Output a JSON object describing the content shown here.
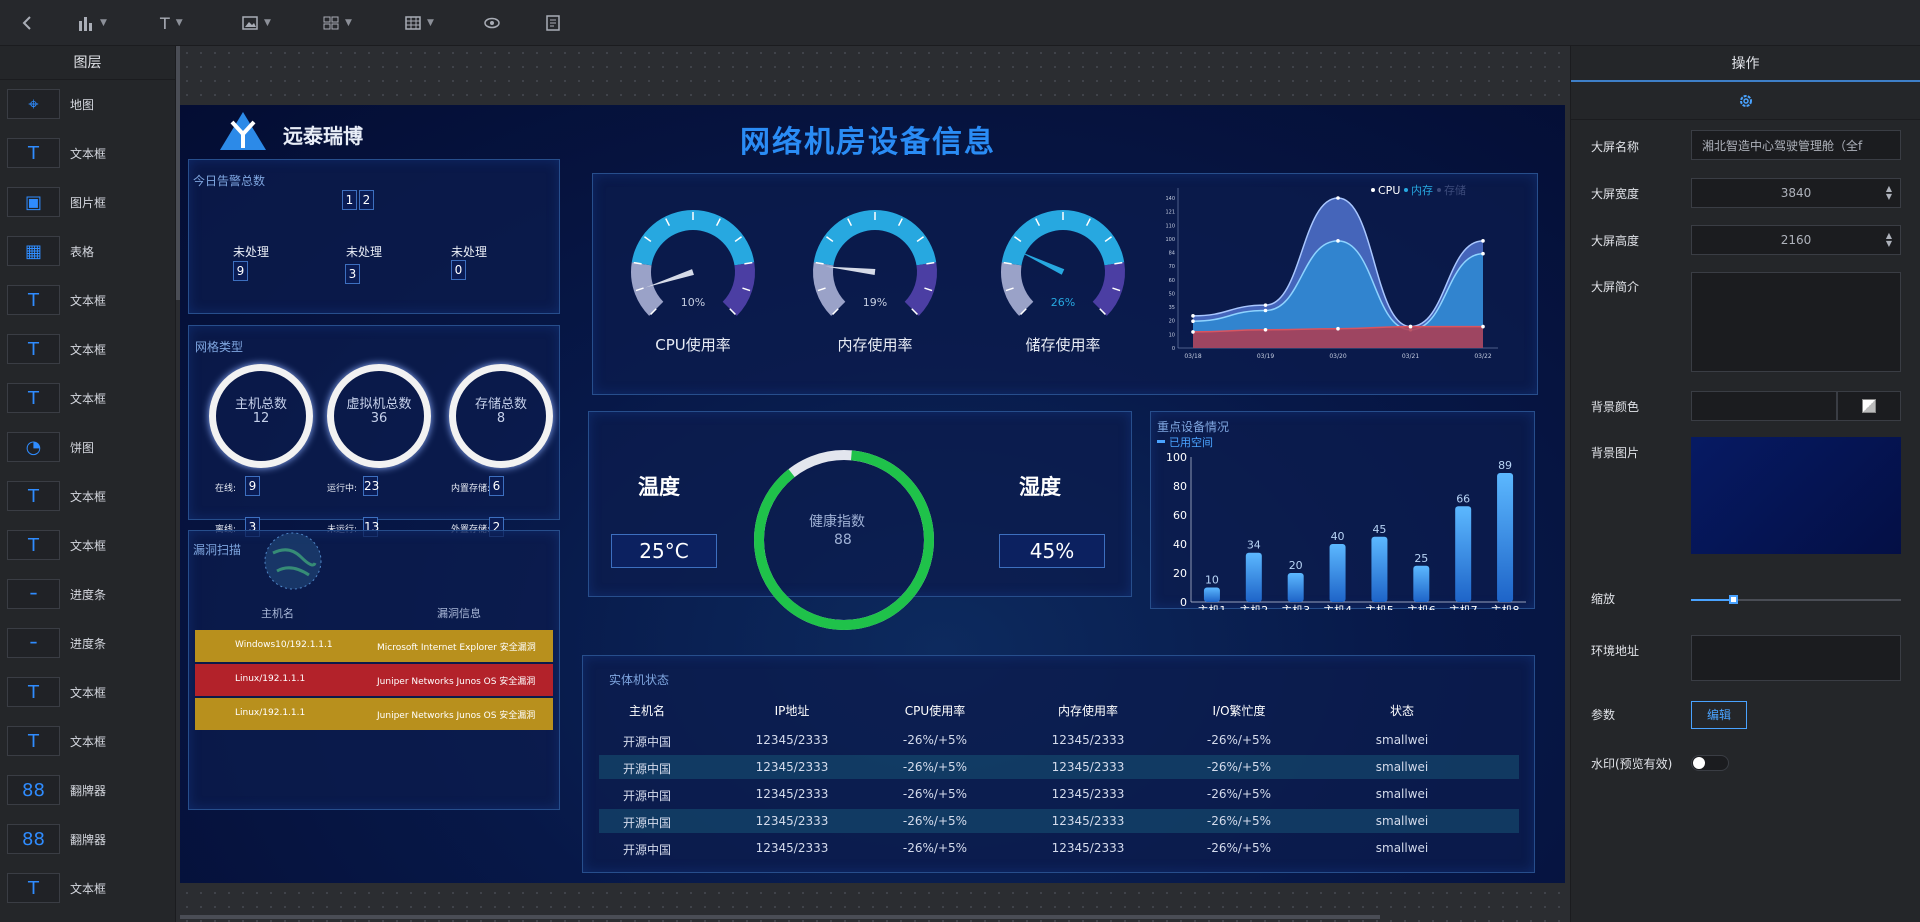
{
  "toolbar": {
    "icons": [
      "back-icon",
      "bar-chart-icon",
      "text-icon",
      "image-icon",
      "grid-icon",
      "table-icon",
      "eye-icon",
      "notes-icon"
    ]
  },
  "layers": {
    "title": "图层",
    "items": [
      {
        "label": "地图",
        "icon": "map-pin-icon"
      },
      {
        "label": "文本框",
        "icon": "text-icon"
      },
      {
        "label": "图片框",
        "icon": "image-icon"
      },
      {
        "label": "表格",
        "icon": "table-icon"
      },
      {
        "label": "文本框",
        "icon": "text-icon"
      },
      {
        "label": "文本框",
        "icon": "text-icon"
      },
      {
        "label": "文本框",
        "icon": "text-icon"
      },
      {
        "label": "饼图",
        "icon": "pie-chart-icon"
      },
      {
        "label": "文本框",
        "icon": "text-icon"
      },
      {
        "label": "文本框",
        "icon": "text-icon"
      },
      {
        "label": "进度条",
        "icon": "progress-icon"
      },
      {
        "label": "进度条",
        "icon": "progress-icon"
      },
      {
        "label": "文本框",
        "icon": "text-icon"
      },
      {
        "label": "文本框",
        "icon": "text-icon"
      },
      {
        "label": "翻牌器",
        "icon": "flip-icon"
      },
      {
        "label": "翻牌器",
        "icon": "flip-icon"
      },
      {
        "label": "文本框",
        "icon": "text-icon"
      }
    ]
  },
  "dashboard": {
    "brand": "远泰瑞博",
    "title": "网络机房设备信息",
    "alarm": {
      "title": "今日告警总数",
      "digits": [
        "1",
        "2"
      ],
      "items": [
        {
          "label": "未处理",
          "value": "9"
        },
        {
          "label": "未处理",
          "value": "3"
        },
        {
          "label": "未处理",
          "value": "0"
        }
      ]
    },
    "network": {
      "title": "网格类型",
      "circles": [
        {
          "label": "主机总数",
          "value": "12"
        },
        {
          "label": "虚拟机总数",
          "value": "36"
        },
        {
          "label": "存储总数",
          "value": "8"
        }
      ],
      "stats": [
        {
          "label": "在线:",
          "value": "9"
        },
        {
          "label": "运行中:",
          "value": "23"
        },
        {
          "label": "内置存储:",
          "value": "6"
        },
        {
          "label": "离线:",
          "value": "3"
        },
        {
          "label": "未运行:",
          "value": "13"
        },
        {
          "label": "外置存储:",
          "value": "2"
        }
      ]
    },
    "vuln": {
      "title": "漏洞扫描",
      "headers": [
        "主机名",
        "漏洞信息"
      ],
      "rows": [
        {
          "host": "Windows10/192.1.1.1",
          "info": "Microsoft Internet Explorer 安全漏洞",
          "color": "#b8901d"
        },
        {
          "host": "Linux/192.1.1.1",
          "info": "Juniper Networks Junos OS 安全漏洞",
          "color": "#b3222a"
        },
        {
          "host": "Linux/192.1.1.1",
          "info": "Juniper Networks Junos OS 安全漏洞",
          "color": "#b8901d"
        }
      ]
    },
    "gauges": [
      {
        "label": "CPU使用率",
        "value": 10,
        "text": "10%"
      },
      {
        "label": "内存使用率",
        "value": 19,
        "text": "19%"
      },
      {
        "label": "储存使用率",
        "value": 26,
        "text": "26%"
      }
    ],
    "env": {
      "temp_label": "温度",
      "temp_value": "25°C",
      "hum_label": "湿度",
      "hum_value": "45%",
      "health_label": "健康指数",
      "health_value": "88",
      "health": 88
    },
    "table": {
      "title": "实体机状态",
      "headers": [
        "主机名",
        "IP地址",
        "CPU使用率",
        "内存使用率",
        "I/O繁忙度",
        "状态"
      ],
      "rows": [
        [
          "开源中国",
          "12345/2333",
          "-26%/+5%",
          "12345/2333",
          "-26%/+5%",
          "smallwei"
        ],
        [
          "开源中国",
          "12345/2333",
          "-26%/+5%",
          "12345/2333",
          "-26%/+5%",
          "smallwei"
        ],
        [
          "开源中国",
          "12345/2333",
          "-26%/+5%",
          "12345/2333",
          "-26%/+5%",
          "smallwei"
        ],
        [
          "开源中国",
          "12345/2333",
          "-26%/+5%",
          "12345/2333",
          "-26%/+5%",
          "smallwei"
        ],
        [
          "开源中国",
          "12345/2333",
          "-26%/+5%",
          "12345/2333",
          "-26%/+5%",
          "smallwei"
        ]
      ]
    }
  },
  "chart_data": [
    {
      "type": "area",
      "title": "",
      "x": [
        "03/18",
        "03/19",
        "03/20",
        "03/21",
        "03/22"
      ],
      "legend": [
        "CPU",
        "内存",
        "存储"
      ],
      "legend_position": "top-right",
      "ylim": [
        0,
        140
      ],
      "yticks": [
        "0",
        "10",
        "20",
        "35",
        "50",
        "60",
        "70",
        "84",
        "100",
        "110",
        "121",
        "140"
      ],
      "series": [
        {
          "name": "CPU",
          "values": [
            30,
            40,
            140,
            20,
            100
          ]
        },
        {
          "name": "内存",
          "values": [
            25,
            35,
            100,
            17,
            88
          ]
        },
        {
          "name": "存储",
          "values": [
            15,
            17,
            18,
            20,
            20
          ]
        }
      ]
    },
    {
      "type": "bar",
      "title": "重点设备情况",
      "legend": [
        "已用空间"
      ],
      "categories": [
        "主机1",
        "主机2",
        "主机3",
        "主机4",
        "主机5",
        "主机6",
        "主机7",
        "主机8"
      ],
      "values": [
        10,
        34,
        20,
        40,
        45,
        25,
        66,
        89
      ],
      "ylim": [
        0,
        100
      ],
      "yticks": [
        "0",
        "20",
        "40",
        "60",
        "80",
        "100"
      ]
    }
  ],
  "props": {
    "title": "操作",
    "tab_icon": "gear-icon",
    "name_label": "大屏名称",
    "name_value": "湘北智造中心驾驶管理舱（全f",
    "width_label": "大屏宽度",
    "width_value": "3840",
    "height_label": "大屏高度",
    "height_value": "2160",
    "desc_label": "大屏简介",
    "bgcolor_label": "背景颜色",
    "bgimage_label": "背景图片",
    "zoom_label": "缩放",
    "zoom": 0.2,
    "env_label": "环境地址",
    "param_label": "参数",
    "edit_label": "编辑",
    "watermark_label": "水印(预览有效)"
  }
}
